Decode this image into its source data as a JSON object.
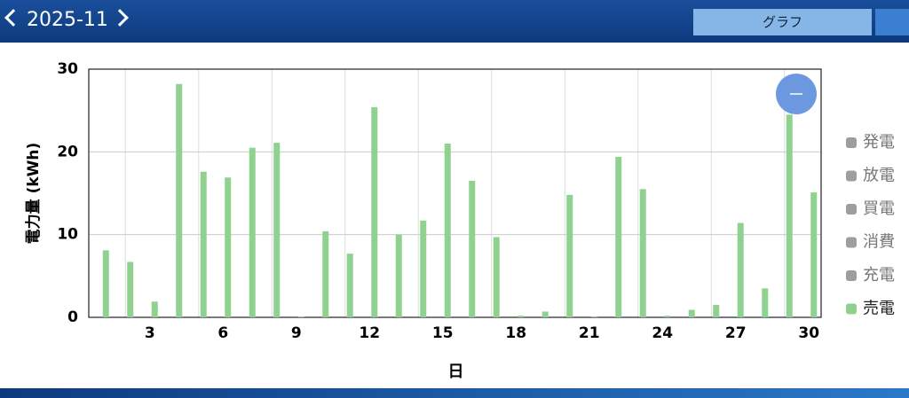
{
  "header": {
    "month": "2025-11",
    "tab": "グラフ"
  },
  "chart_data": {
    "type": "bar",
    "categories": [
      null,
      null,
      "3",
      null,
      null,
      "6",
      null,
      null,
      "9",
      null,
      null,
      "12",
      null,
      null,
      "15",
      null,
      null,
      "18",
      null,
      null,
      "21",
      null,
      null,
      "24",
      null,
      null,
      "27",
      null,
      null,
      "30"
    ],
    "series": [
      {
        "name": "売電",
        "color": "#8fd18f",
        "values": [
          8.1,
          6.7,
          1.9,
          28.2,
          17.6,
          16.9,
          20.5,
          21.1,
          0.1,
          10.4,
          7.7,
          25.4,
          10.0,
          11.7,
          21.0,
          16.5,
          9.7,
          0.2,
          0.7,
          14.8,
          0.1,
          19.4,
          15.5,
          0.2,
          0.9,
          1.5,
          11.4,
          3.5,
          24.5,
          15.1
        ]
      }
    ],
    "hidden_series": [
      {
        "name": "発電",
        "color": "#9e9e9e"
      },
      {
        "name": "放電",
        "color": "#9e9e9e"
      },
      {
        "name": "買電",
        "color": "#9e9e9e"
      },
      {
        "name": "消費",
        "color": "#9e9e9e"
      },
      {
        "name": "充電",
        "color": "#9e9e9e"
      }
    ],
    "y_label": "電力量 (kWh)",
    "x_label": "日",
    "ylim": [
      0,
      30
    ],
    "yticks": [
      0,
      10,
      20,
      30
    ],
    "grid": true
  }
}
